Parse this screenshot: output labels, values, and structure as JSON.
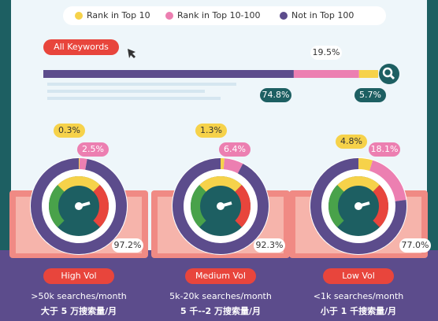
{
  "chart_data": [
    {
      "type": "bar",
      "orientation": "horizontal",
      "stacked": true,
      "categories": [
        "All Keywords"
      ],
      "xlim": [
        0,
        100
      ],
      "series": [
        {
          "name": "Rank in Top 10",
          "color": "#f6d24a",
          "values": [
            5.7
          ],
          "value_labels": [
            "5.7%"
          ]
        },
        {
          "name": "Rank in Top 10-100",
          "color": "#ec7fb1",
          "values": [
            19.5
          ],
          "value_labels": [
            "19.5%"
          ]
        },
        {
          "name": "Not in Top 100",
          "color": "#5c4c8c",
          "values": [
            74.8
          ],
          "value_labels": [
            "74.8%"
          ]
        }
      ]
    },
    {
      "type": "pie",
      "donut": true,
      "title": "High Vol",
      "subtitle": ">50k searches/month",
      "caption": "大于 5 万搜索量/月",
      "colors": [
        "#f6d24a",
        "#ec7fb1",
        "#5c4c8c"
      ],
      "values": [
        0.3,
        2.5,
        97.2
      ],
      "value_labels": [
        "0.3%",
        "2.5%",
        "97.2%"
      ]
    },
    {
      "type": "pie",
      "donut": true,
      "title": "Medium Vol",
      "subtitle": "5k-20k searches/month",
      "caption": "5 千--2 万搜索量/月",
      "colors": [
        "#f6d24a",
        "#ec7fb1",
        "#5c4c8c"
      ],
      "values": [
        1.3,
        6.4,
        92.3
      ],
      "value_labels": [
        "1.3%",
        "6.4%",
        "92.3%"
      ]
    },
    {
      "type": "pie",
      "donut": true,
      "title": "Low Vol",
      "subtitle": "<1k searches/month",
      "caption": "小于 1 千搜索量/月",
      "colors": [
        "#f6d24a",
        "#ec7fb1",
        "#5c4c8c"
      ],
      "values": [
        4.8,
        18.1,
        77
      ],
      "value_labels": [
        "4.8%",
        "18.1%",
        "77.0%"
      ]
    }
  ]
}
